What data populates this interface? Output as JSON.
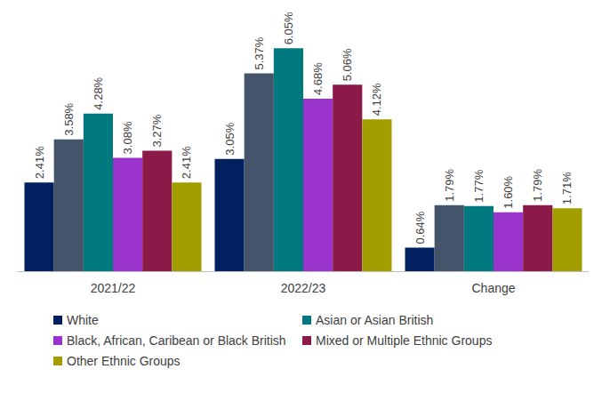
{
  "chart_data": {
    "type": "bar",
    "categories": [
      "2021/22",
      "2022/23",
      "Change"
    ],
    "series": [
      {
        "name": "White",
        "color": "#002060",
        "values": [
          2.41,
          3.05,
          0.64
        ],
        "value_labels": [
          "2.41%",
          "3.05%",
          "0.64%"
        ]
      },
      {
        "color": "#44546A",
        "values": [
          3.58,
          5.37,
          1.79
        ],
        "value_labels": [
          "3.58%",
          "5.37%",
          "1.79%"
        ]
      },
      {
        "name": "Asian or Asian British",
        "color": "#00797F",
        "values": [
          4.28,
          6.05,
          1.77
        ],
        "value_labels": [
          "4.28%",
          "6.05%",
          "1.77%"
        ]
      },
      {
        "name": "Black, African, Caribean or Black British",
        "color": "#9933CC",
        "values": [
          3.08,
          4.68,
          1.6
        ],
        "value_labels": [
          "3.08%",
          "4.68%",
          "1.60%"
        ]
      },
      {
        "name": "Mixed or Multiple Ethnic Groups",
        "color": "#8B1A48",
        "values": [
          3.27,
          5.06,
          1.79
        ],
        "value_labels": [
          "3.27%",
          "5.06%",
          "1.79%"
        ]
      },
      {
        "name": "Other Ethnic Groups",
        "color": "#A39E00",
        "values": [
          2.41,
          4.12,
          1.71
        ],
        "value_labels": [
          "2.41%",
          "4.12%",
          "1.71%"
        ]
      }
    ],
    "ylim": [
      0,
      7
    ],
    "data_labels": true,
    "tick_labels": "x",
    "grid": false,
    "legend": "bottom"
  }
}
